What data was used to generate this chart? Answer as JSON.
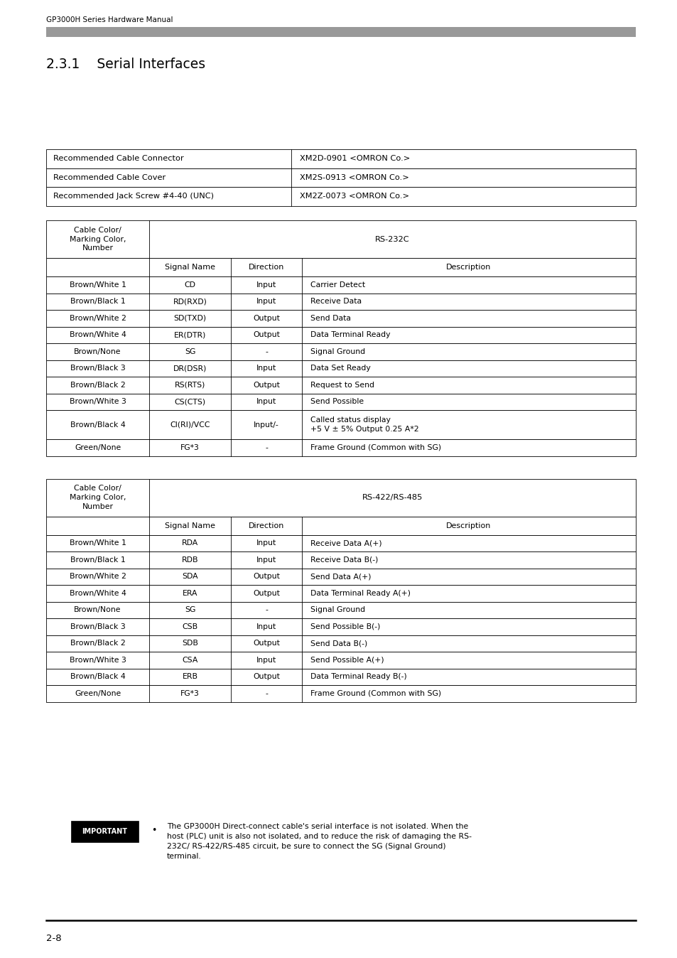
{
  "header_text": "GP3000H Series Hardware Manual",
  "header_bar_color": "#999999",
  "section_title": "2.3.1    Serial Interfaces",
  "page_number": "2-8",
  "bg_color": "#ffffff",
  "rec_table": {
    "rows": [
      [
        "Recommended Cable Connector",
        "XM2D-0901 <OMRON Co.>"
      ],
      [
        "Recommended Cable Cover",
        "XM2S-0913 <OMRON Co.>"
      ],
      [
        "Recommended Jack Screw #4-40 (UNC)",
        "XM2Z-0073 <OMRON Co.>"
      ]
    ]
  },
  "rs232c_table": {
    "header_span": "RS-232C",
    "col_headers": [
      "Signal Name",
      "Direction",
      "Description"
    ],
    "left_header": "Cable Color/\nMarking Color,\nNumber",
    "rows": [
      [
        "Brown/White 1",
        "CD",
        "Input",
        "Carrier Detect"
      ],
      [
        "Brown/Black 1",
        "RD(RXD)",
        "Input",
        "Receive Data"
      ],
      [
        "Brown/White 2",
        "SD(TXD)",
        "Output",
        "Send Data"
      ],
      [
        "Brown/White 4",
        "ER(DTR)",
        "Output",
        "Data Terminal Ready"
      ],
      [
        "Brown/None",
        "SG",
        "-",
        "Signal Ground"
      ],
      [
        "Brown/Black 3",
        "DR(DSR)",
        "Input",
        "Data Set Ready"
      ],
      [
        "Brown/Black 2",
        "RS(RTS)",
        "Output",
        "Request to Send"
      ],
      [
        "Brown/White 3",
        "CS(CTS)",
        "Input",
        "Send Possible"
      ],
      [
        "Brown/Black 4",
        "CI(RI)/VCC",
        "Input/-",
        "Called status display\n+5 V ± 5% Output 0.25 A*2"
      ],
      [
        "Green/None",
        "FG*3",
        "-",
        "Frame Ground (Common with SG)"
      ]
    ]
  },
  "rs485_table": {
    "header_span": "RS-422/RS-485",
    "col_headers": [
      "Signal Name",
      "Direction",
      "Description"
    ],
    "left_header": "Cable Color/\nMarking Color,\nNumber",
    "rows": [
      [
        "Brown/White 1",
        "RDA",
        "Input",
        "Receive Data A(+)"
      ],
      [
        "Brown/Black 1",
        "RDB",
        "Input",
        "Receive Data B(-)"
      ],
      [
        "Brown/White 2",
        "SDA",
        "Output",
        "Send Data A(+)"
      ],
      [
        "Brown/White 4",
        "ERA",
        "Output",
        "Data Terminal Ready A(+)"
      ],
      [
        "Brown/None",
        "SG",
        "-",
        "Signal Ground"
      ],
      [
        "Brown/Black 3",
        "CSB",
        "Input",
        "Send Possible B(-)"
      ],
      [
        "Brown/Black 2",
        "SDB",
        "Output",
        "Send Data B(-)"
      ],
      [
        "Brown/White 3",
        "CSA",
        "Input",
        "Send Possible A(+)"
      ],
      [
        "Brown/Black 4",
        "ERB",
        "Output",
        "Data Terminal Ready B(-)"
      ],
      [
        "Green/None",
        "FG*3",
        "-",
        "Frame Ground (Common with SG)"
      ]
    ]
  },
  "important_text": "The GP3000H Direct-connect cable's serial interface is not isolated. When the\nhost (PLC) unit is also not isolated, and to reduce the risk of damaging the RS-\n232C/ RS-422/RS-485 circuit, be sure to connect the SG (Signal Ground)\nterminal."
}
